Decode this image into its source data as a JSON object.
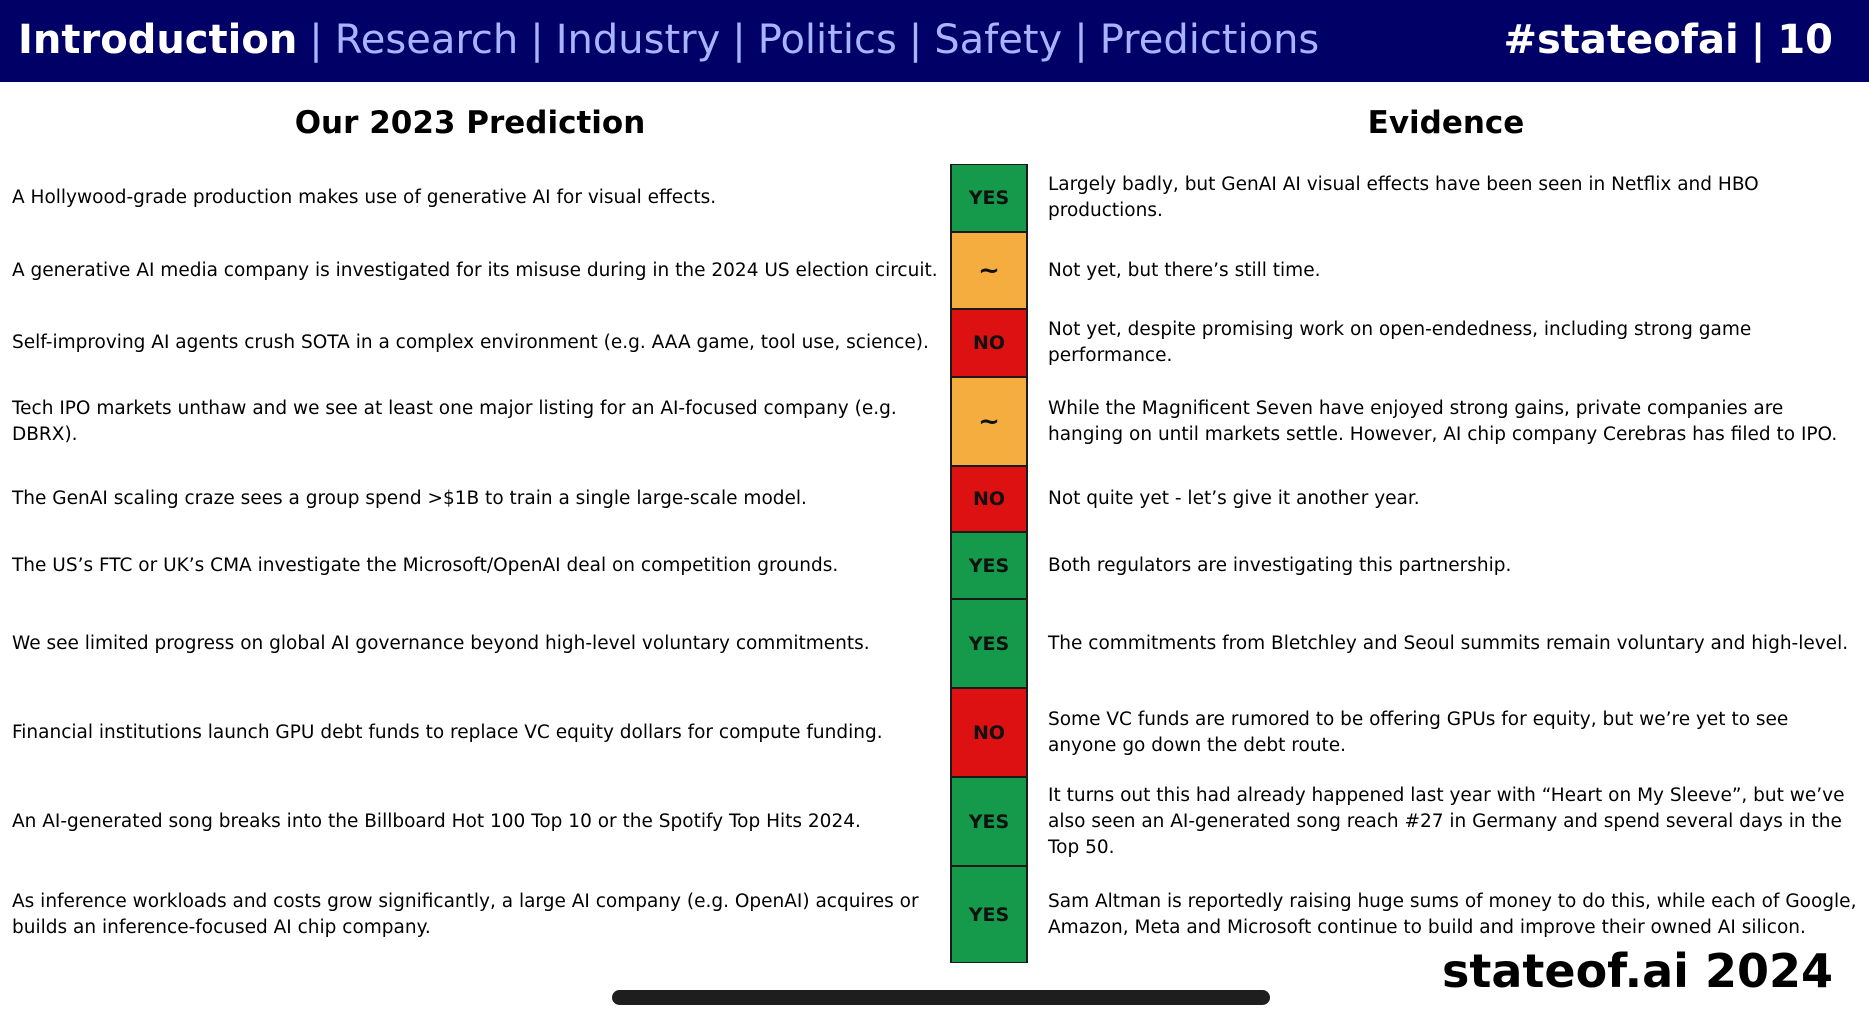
{
  "header": {
    "tabs": [
      {
        "label": "Introduction",
        "active": true
      },
      {
        "label": "Research",
        "active": false
      },
      {
        "label": "Industry",
        "active": false
      },
      {
        "label": "Politics",
        "active": false
      },
      {
        "label": "Safety",
        "active": false
      },
      {
        "label": "Predictions",
        "active": false
      }
    ],
    "separator": "|",
    "hashtag": "#stateofai",
    "page_number": "10"
  },
  "columns": {
    "left_title": "Our 2023 Prediction",
    "right_title": "Evidence"
  },
  "rows": [
    {
      "prediction": "A Hollywood-grade production makes use of generative AI for visual effects.",
      "verdict": "YES",
      "evidence": "Largely badly, but GenAI AI visual effects have been seen in Netflix and HBO productions."
    },
    {
      "prediction": "A generative AI media company is investigated for its misuse during in the 2024 US election circuit.",
      "verdict": "~",
      "evidence": "Not yet, but there’s still time."
    },
    {
      "prediction": "Self-improving AI agents crush SOTA in a complex environment (e.g. AAA game, tool use, science).",
      "verdict": "NO",
      "evidence": "Not yet, despite promising work on open-endedness, including strong game performance."
    },
    {
      "prediction": "Tech IPO markets unthaw and we see at least one major listing for an AI-focused company (e.g. DBRX).",
      "verdict": "~",
      "evidence": "While the Magnificent Seven have enjoyed strong gains, private companies are hanging on until markets settle. However, AI chip company Cerebras has filed to IPO."
    },
    {
      "prediction": "The GenAI scaling craze sees a group spend >$1B to train a single large-scale model.",
      "verdict": "NO",
      "evidence": "Not quite yet - let’s give it another year."
    },
    {
      "prediction": "The US’s FTC or UK’s CMA investigate the Microsoft/OpenAI deal on competition grounds.",
      "verdict": "YES",
      "evidence": "Both regulators are investigating this partnership."
    },
    {
      "prediction": "We see limited progress on global AI governance beyond high-level voluntary commitments.",
      "verdict": "YES",
      "evidence": "The commitments from Bletchley and Seoul summits remain voluntary and high-level."
    },
    {
      "prediction": "Financial institutions launch GPU debt funds to replace VC equity dollars for compute funding.",
      "verdict": "NO",
      "evidence": "Some VC funds are rumored to be offering GPUs for equity, but we’re yet to see anyone go down the debt route."
    },
    {
      "prediction": "An AI-generated song breaks into the Billboard Hot 100 Top 10 or the Spotify Top Hits 2024.",
      "verdict": "YES",
      "evidence": "It turns out this had already happened last year with “Heart on My Sleeve”, but we’ve also seen an AI-generated song reach #27 in Germany and spend several days in the Top 50."
    },
    {
      "prediction": "As inference workloads and costs grow significantly, a large AI company (e.g. OpenAI) acquires or builds an inference-focused AI chip company.",
      "verdict": "YES",
      "evidence": "Sam Altman is reportedly raising huge sums of money to do this, while each of Google, Amazon, Meta and Microsoft continue to build and improve their owned AI silicon."
    }
  ],
  "footer": {
    "brand": "stateof.ai 2024"
  },
  "colors": {
    "header_bg": "#000066",
    "tab_inactive": "#a8b4ff",
    "yes": "#149a4a",
    "partial": "#f6ad40",
    "no": "#dd1111"
  }
}
